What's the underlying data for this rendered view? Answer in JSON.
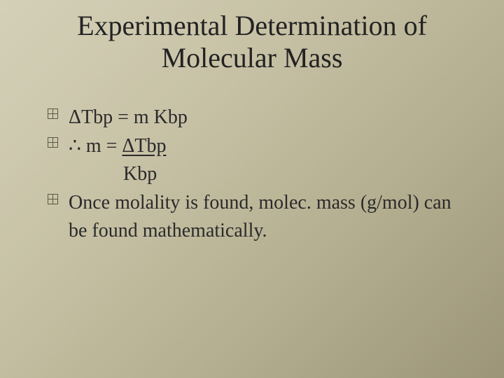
{
  "slide": {
    "background_gradient": [
      "#d4d0b8",
      "#c9c4a8",
      "#b5af91",
      "#9c9578"
    ],
    "title_line1": "Experimental Determination of",
    "title_line2": "Molecular Mass",
    "title_fontsize": 40,
    "body_fontsize": 28,
    "font_family": "Times New Roman",
    "text_color": "#2a2a2a",
    "bullet_border_color": "#5a5a45",
    "bullets": [
      {
        "has_marker": true,
        "text": "ΔTbp  =  m Kbp"
      },
      {
        "has_marker": true,
        "prefix": "∴  m = ",
        "underlined": "ΔTbp  "
      },
      {
        "has_marker": false,
        "indent": true,
        "text": "  Kbp"
      },
      {
        "has_marker": true,
        "text": "Once molality is found, molec. mass (g/mol) can be found mathematically."
      }
    ]
  }
}
